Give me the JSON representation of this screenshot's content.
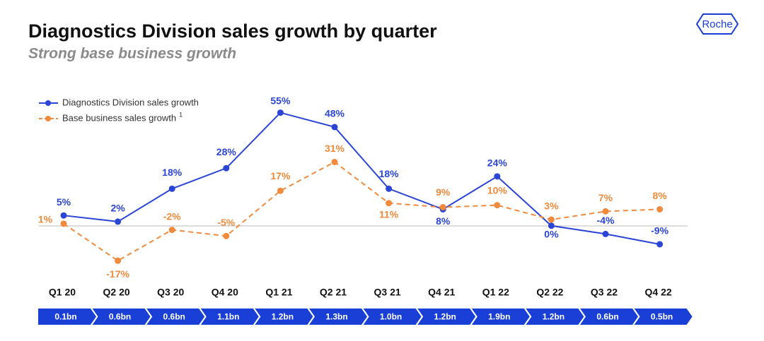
{
  "chart_data": {
    "type": "line",
    "title": "Diagnostics Division sales growth by quarter",
    "subtitle": "Strong base business growth",
    "logo": "Roche",
    "categories": [
      "Q1 20",
      "Q2 20",
      "Q3 20",
      "Q4 20",
      "Q1 21",
      "Q2 21",
      "Q3 21",
      "Q4 21",
      "Q1 22",
      "Q2 22",
      "Q3 22",
      "Q4 22"
    ],
    "series": [
      {
        "name": "Diagnostics Division sales growth",
        "color": "#2b45d6",
        "dash": false,
        "values": [
          5,
          2,
          18,
          28,
          55,
          48,
          18,
          8,
          24,
          0,
          -4,
          -9
        ],
        "value_labels": [
          "5%",
          "2%",
          "18%",
          "28%",
          "55%",
          "48%",
          "18%",
          "8%",
          "24%",
          "0%",
          "-4%",
          "-9%"
        ]
      },
      {
        "name": "Base business sales growth",
        "footnote_marker": "1",
        "color": "#f08a3c",
        "dash": true,
        "values": [
          1,
          -17,
          -2,
          -5,
          17,
          31,
          11,
          9,
          10,
          3,
          7,
          8
        ],
        "value_labels": [
          "1%",
          "-17%",
          "-2%",
          "-5%",
          "17%",
          "31%",
          "11%",
          "9%",
          "10%",
          "3%",
          "7%",
          "8%"
        ]
      }
    ],
    "sales_labels": [
      "0.1bn",
      "0.6bn",
      "0.6bn",
      "1.1bn",
      "1.2bn",
      "1.3bn",
      "1.0bn",
      "1.2bn",
      "1.9bn",
      "1.2bn",
      "0.6bn",
      "0.5bn"
    ],
    "ylim": [
      -20,
      60
    ],
    "legend": "upper left"
  }
}
